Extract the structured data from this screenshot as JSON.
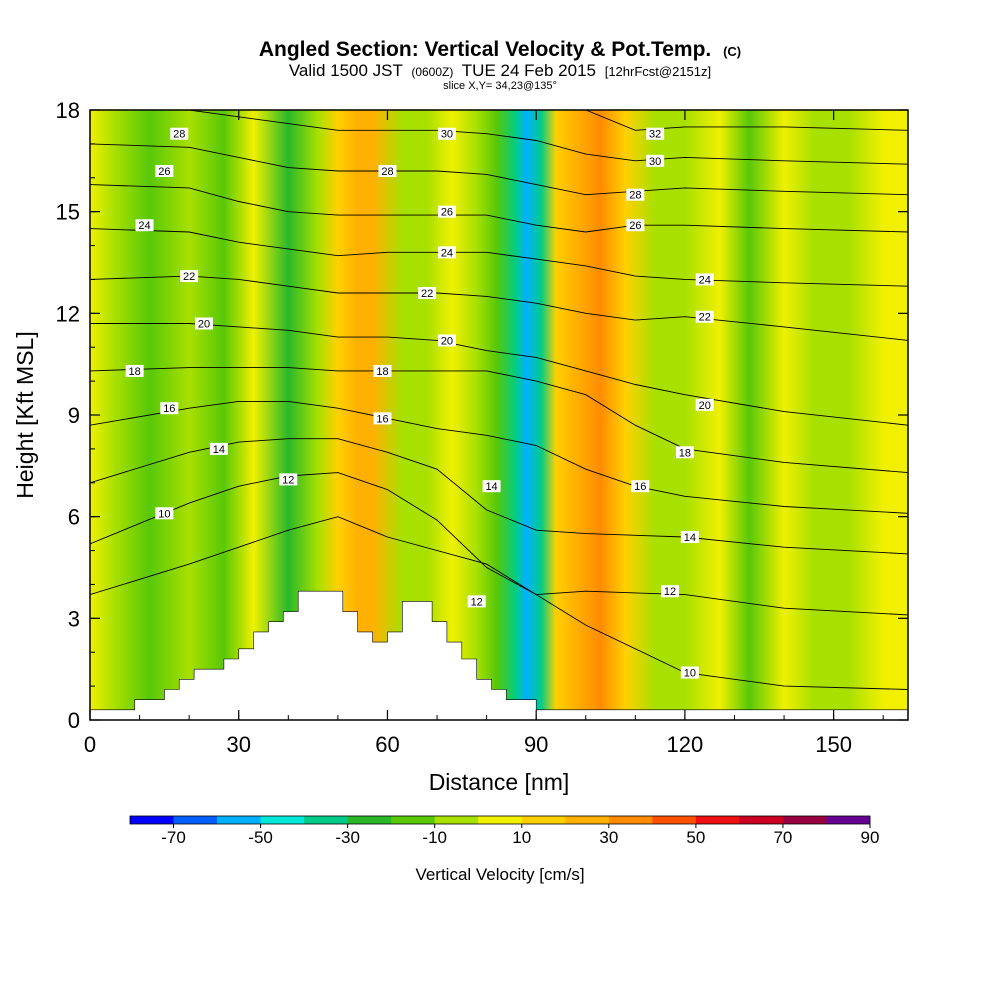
{
  "chart_data": {
    "type": "heatmap",
    "title": "Angled Section: Vertical Velocity & Pot.Temp.",
    "title_unit": "(C)",
    "subtitle": {
      "part1": "Valid 1500 JST",
      "part2": "(0600Z)",
      "part3": "TUE 24 Feb 2015",
      "part4": "[12hrFcst@2151z]"
    },
    "slice_label": "slice X,Y= 34,23@135°",
    "xlabel": "Distance [nm]",
    "ylabel": "Height [Kft MSL]",
    "xlim": [
      0,
      165
    ],
    "ylim": [
      0,
      18
    ],
    "xticks": [
      "0",
      "30",
      "60",
      "90",
      "120",
      "150"
    ],
    "yticks": [
      "0",
      "3",
      "6",
      "9",
      "12",
      "15",
      "18"
    ],
    "colorbar": {
      "title": "Vertical Velocity [cm/s]",
      "labels": [
        "-70",
        "-50",
        "-30",
        "-10",
        "10",
        "30",
        "50",
        "70",
        "90"
      ],
      "colors": [
        "#0000ff",
        "#0060ff",
        "#00b0ff",
        "#00e8d8",
        "#00cc88",
        "#2ab82a",
        "#58c808",
        "#a8e000",
        "#f0f000",
        "#ffd000",
        "#ffb000",
        "#ff8c00",
        "#ff5000",
        "#ee1010",
        "#cc0020",
        "#990040",
        "#660090"
      ]
    },
    "velocity_columns": [
      {
        "x": 0,
        "value": 0
      },
      {
        "x": 5,
        "value": -3
      },
      {
        "x": 12,
        "value": -12
      },
      {
        "x": 20,
        "value": -6
      },
      {
        "x": 27,
        "value": -16
      },
      {
        "x": 33,
        "value": 8
      },
      {
        "x": 40,
        "value": -22
      },
      {
        "x": 46,
        "value": -8
      },
      {
        "x": 50,
        "value": 12
      },
      {
        "x": 54,
        "value": 28
      },
      {
        "x": 57,
        "value": 24
      },
      {
        "x": 63,
        "value": -2
      },
      {
        "x": 68,
        "value": -8
      },
      {
        "x": 73,
        "value": 6
      },
      {
        "x": 78,
        "value": -6
      },
      {
        "x": 82,
        "value": -12
      },
      {
        "x": 86,
        "value": -38
      },
      {
        "x": 88,
        "value": -52
      },
      {
        "x": 91,
        "value": -34
      },
      {
        "x": 94,
        "value": 12
      },
      {
        "x": 98,
        "value": 22
      },
      {
        "x": 103,
        "value": 30
      },
      {
        "x": 108,
        "value": 12
      },
      {
        "x": 114,
        "value": -4
      },
      {
        "x": 120,
        "value": -10
      },
      {
        "x": 127,
        "value": 2
      },
      {
        "x": 133,
        "value": -12
      },
      {
        "x": 140,
        "value": 4
      },
      {
        "x": 146,
        "value": -6
      },
      {
        "x": 153,
        "value": -2
      },
      {
        "x": 160,
        "value": 4
      },
      {
        "x": 165,
        "value": 2
      }
    ],
    "isentropes": [
      {
        "theta": 10,
        "points": [
          [
            0,
            3.7
          ],
          [
            20,
            4.6
          ],
          [
            30,
            5.1
          ],
          [
            40,
            5.6
          ],
          [
            50,
            6.0
          ],
          [
            60,
            5.4
          ],
          [
            80,
            4.6
          ],
          [
            100,
            2.8
          ],
          [
            120,
            1.4
          ],
          [
            140,
            1.0
          ],
          [
            165,
            0.9
          ]
        ],
        "labels": [
          [
            15,
            6.1
          ],
          [
            121,
            1.4
          ]
        ]
      },
      {
        "theta": 12,
        "points": [
          [
            0,
            5.2
          ],
          [
            20,
            6.4
          ],
          [
            30,
            6.9
          ],
          [
            40,
            7.2
          ],
          [
            50,
            7.3
          ],
          [
            60,
            6.8
          ],
          [
            70,
            5.9
          ],
          [
            80,
            4.5
          ],
          [
            90,
            3.7
          ],
          [
            100,
            3.8
          ],
          [
            120,
            3.7
          ],
          [
            140,
            3.3
          ],
          [
            165,
            3.1
          ]
        ],
        "labels": [
          [
            40,
            7.1
          ],
          [
            78,
            3.5
          ],
          [
            117,
            3.8
          ]
        ]
      },
      {
        "theta": 14,
        "points": [
          [
            0,
            7.0
          ],
          [
            20,
            7.9
          ],
          [
            30,
            8.2
          ],
          [
            40,
            8.3
          ],
          [
            50,
            8.3
          ],
          [
            60,
            7.9
          ],
          [
            70,
            7.4
          ],
          [
            80,
            6.2
          ],
          [
            90,
            5.6
          ],
          [
            100,
            5.5
          ],
          [
            120,
            5.4
          ],
          [
            140,
            5.1
          ],
          [
            165,
            4.9
          ]
        ],
        "labels": [
          [
            26,
            8.0
          ],
          [
            81,
            6.9
          ],
          [
            121,
            5.4
          ]
        ]
      },
      {
        "theta": 16,
        "points": [
          [
            0,
            8.7
          ],
          [
            20,
            9.2
          ],
          [
            30,
            9.4
          ],
          [
            40,
            9.4
          ],
          [
            50,
            9.2
          ],
          [
            60,
            8.9
          ],
          [
            70,
            8.6
          ],
          [
            80,
            8.4
          ],
          [
            90,
            8.1
          ],
          [
            100,
            7.4
          ],
          [
            110,
            6.9
          ],
          [
            120,
            6.6
          ],
          [
            140,
            6.3
          ],
          [
            165,
            6.1
          ]
        ],
        "labels": [
          [
            16,
            9.2
          ],
          [
            59,
            8.9
          ],
          [
            111,
            6.9
          ]
        ]
      },
      {
        "theta": 18,
        "points": [
          [
            0,
            10.3
          ],
          [
            20,
            10.4
          ],
          [
            30,
            10.4
          ],
          [
            40,
            10.4
          ],
          [
            50,
            10.3
          ],
          [
            60,
            10.3
          ],
          [
            70,
            10.3
          ],
          [
            80,
            10.3
          ],
          [
            90,
            10.0
          ],
          [
            100,
            9.6
          ],
          [
            110,
            8.7
          ],
          [
            120,
            8.0
          ],
          [
            140,
            7.6
          ],
          [
            165,
            7.3
          ]
        ],
        "labels": [
          [
            9,
            10.3
          ],
          [
            59,
            10.3
          ],
          [
            120,
            7.9
          ]
        ]
      },
      {
        "theta": 20,
        "points": [
          [
            0,
            11.7
          ],
          [
            20,
            11.7
          ],
          [
            30,
            11.6
          ],
          [
            40,
            11.5
          ],
          [
            50,
            11.3
          ],
          [
            60,
            11.3
          ],
          [
            70,
            11.2
          ],
          [
            80,
            10.9
          ],
          [
            90,
            10.7
          ],
          [
            100,
            10.3
          ],
          [
            110,
            9.9
          ],
          [
            120,
            9.6
          ],
          [
            140,
            9.1
          ],
          [
            165,
            8.7
          ]
        ],
        "labels": [
          [
            23,
            11.7
          ],
          [
            72,
            11.2
          ],
          [
            124,
            9.3
          ]
        ]
      },
      {
        "theta": 22,
        "points": [
          [
            0,
            13.0
          ],
          [
            20,
            13.1
          ],
          [
            30,
            13.0
          ],
          [
            40,
            12.8
          ],
          [
            50,
            12.6
          ],
          [
            60,
            12.6
          ],
          [
            70,
            12.6
          ],
          [
            80,
            12.5
          ],
          [
            90,
            12.3
          ],
          [
            100,
            12.0
          ],
          [
            110,
            11.8
          ],
          [
            120,
            11.9
          ],
          [
            140,
            11.6
          ],
          [
            165,
            11.2
          ]
        ],
        "labels": [
          [
            20,
            13.1
          ],
          [
            68,
            12.6
          ],
          [
            124,
            11.9
          ]
        ]
      },
      {
        "theta": 24,
        "points": [
          [
            0,
            14.5
          ],
          [
            20,
            14.4
          ],
          [
            30,
            14.1
          ],
          [
            40,
            13.9
          ],
          [
            50,
            13.7
          ],
          [
            60,
            13.8
          ],
          [
            70,
            13.8
          ],
          [
            80,
            13.8
          ],
          [
            90,
            13.6
          ],
          [
            100,
            13.4
          ],
          [
            110,
            13.1
          ],
          [
            120,
            13.0
          ],
          [
            140,
            12.9
          ],
          [
            165,
            12.8
          ]
        ],
        "labels": [
          [
            11,
            14.6
          ],
          [
            72,
            13.8
          ],
          [
            124,
            13.0
          ]
        ]
      },
      {
        "theta": 26,
        "points": [
          [
            0,
            15.8
          ],
          [
            20,
            15.7
          ],
          [
            30,
            15.3
          ],
          [
            40,
            15.0
          ],
          [
            50,
            14.9
          ],
          [
            60,
            14.9
          ],
          [
            70,
            14.9
          ],
          [
            80,
            14.9
          ],
          [
            90,
            14.6
          ],
          [
            100,
            14.4
          ],
          [
            110,
            14.6
          ],
          [
            120,
            14.6
          ],
          [
            140,
            14.5
          ],
          [
            165,
            14.4
          ]
        ],
        "labels": [
          [
            15,
            16.2
          ],
          [
            72,
            15.0
          ],
          [
            110,
            14.6
          ]
        ]
      },
      {
        "theta": 28,
        "points": [
          [
            0,
            17.0
          ],
          [
            20,
            16.9
          ],
          [
            30,
            16.6
          ],
          [
            40,
            16.3
          ],
          [
            50,
            16.2
          ],
          [
            60,
            16.2
          ],
          [
            70,
            16.2
          ],
          [
            80,
            16.1
          ],
          [
            90,
            15.8
          ],
          [
            100,
            15.5
          ],
          [
            110,
            15.6
          ],
          [
            120,
            15.7
          ],
          [
            140,
            15.6
          ],
          [
            165,
            15.5
          ]
        ],
        "labels": [
          [
            18,
            17.3
          ],
          [
            60,
            16.2
          ],
          [
            110,
            15.5
          ]
        ]
      },
      {
        "theta": 30,
        "points": [
          [
            0,
            18.1
          ],
          [
            20,
            18.0
          ],
          [
            30,
            17.8
          ],
          [
            40,
            17.6
          ],
          [
            50,
            17.4
          ],
          [
            60,
            17.4
          ],
          [
            70,
            17.4
          ],
          [
            80,
            17.3
          ],
          [
            90,
            17.1
          ],
          [
            100,
            16.7
          ],
          [
            110,
            16.5
          ],
          [
            120,
            16.6
          ],
          [
            140,
            16.5
          ],
          [
            165,
            16.4
          ]
        ],
        "labels": [
          [
            72,
            17.3
          ],
          [
            114,
            16.5
          ]
        ]
      },
      {
        "theta": 32,
        "points": [
          [
            60,
            18.4
          ],
          [
            80,
            18.3
          ],
          [
            100,
            18.0
          ],
          [
            110,
            17.4
          ],
          [
            120,
            17.5
          ],
          [
            140,
            17.5
          ],
          [
            165,
            17.4
          ]
        ],
        "labels": [
          [
            114,
            17.3
          ]
        ]
      }
    ],
    "terrain": [
      [
        0,
        0.3
      ],
      [
        9,
        0.3
      ],
      [
        9,
        0.6
      ],
      [
        15,
        0.6
      ],
      [
        15,
        0.9
      ],
      [
        18,
        0.9
      ],
      [
        18,
        1.2
      ],
      [
        21,
        1.2
      ],
      [
        21,
        1.5
      ],
      [
        27,
        1.5
      ],
      [
        27,
        1.8
      ],
      [
        30,
        1.8
      ],
      [
        30,
        2.1
      ],
      [
        33,
        2.1
      ],
      [
        33,
        2.6
      ],
      [
        36,
        2.6
      ],
      [
        36,
        2.9
      ],
      [
        39,
        2.9
      ],
      [
        39,
        3.2
      ],
      [
        42,
        3.2
      ],
      [
        42,
        3.8
      ],
      [
        51,
        3.8
      ],
      [
        51,
        3.2
      ],
      [
        54,
        3.2
      ],
      [
        54,
        2.6
      ],
      [
        57,
        2.6
      ],
      [
        57,
        2.3
      ],
      [
        60,
        2.3
      ],
      [
        60,
        2.6
      ],
      [
        63,
        2.6
      ],
      [
        63,
        3.5
      ],
      [
        69,
        3.5
      ],
      [
        69,
        2.9
      ],
      [
        72,
        2.9
      ],
      [
        72,
        2.3
      ],
      [
        75,
        2.3
      ],
      [
        75,
        1.8
      ],
      [
        78,
        1.8
      ],
      [
        78,
        1.2
      ],
      [
        81,
        1.2
      ],
      [
        81,
        0.9
      ],
      [
        84,
        0.9
      ],
      [
        84,
        0.6
      ],
      [
        90,
        0.6
      ],
      [
        90,
        0.3
      ],
      [
        165,
        0.3
      ],
      [
        165,
        0
      ],
      [
        0,
        0
      ]
    ]
  }
}
